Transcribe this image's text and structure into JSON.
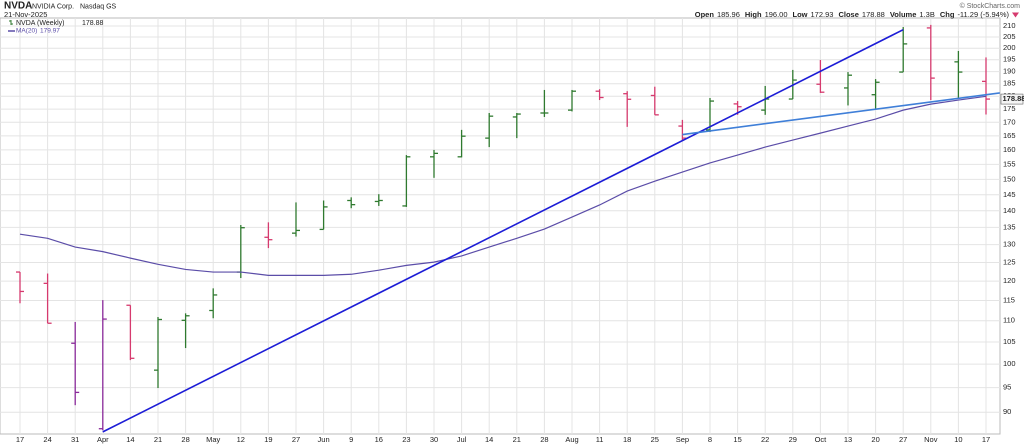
{
  "header": {
    "symbol": "NVDA",
    "name": "NVIDIA Corp.",
    "exchange": "Nasdaq GS",
    "date": "21-Nov-2025",
    "source": "© StockCharts.com",
    "quote": [
      {
        "label": "Open",
        "value": "185.96"
      },
      {
        "label": "High",
        "value": "196.00"
      },
      {
        "label": "Low",
        "value": "172.93"
      },
      {
        "label": "Close",
        "value": "178.88"
      },
      {
        "label": "Volume",
        "value": "1.3B"
      },
      {
        "label": "Chg",
        "value": "-11.29 (-5.94%)"
      }
    ]
  },
  "chart_data": {
    "type": "ohlc",
    "categories": [
      "17",
      "24",
      "31",
      "Apr",
      "14",
      "21",
      "28",
      "May",
      "12",
      "19",
      "27",
      "Jun",
      "9",
      "16",
      "23",
      "30",
      "Jul",
      "14",
      "21",
      "28",
      "Aug",
      "11",
      "18",
      "25",
      "Sep",
      "8",
      "15",
      "22",
      "29",
      "Oct",
      "13",
      "20",
      "27",
      "Nov",
      "10",
      "17"
    ],
    "series": [
      {
        "name": "NVDA (Weekly)",
        "open": [
          122.4,
          119.4,
          104.7,
          86.8,
          113.8,
          98.7,
          110.1,
          112.5,
          122.4,
          132.1,
          133.3,
          134.4,
          143.2,
          142.9,
          141.5,
          157.6,
          157.6,
          164.2,
          172.0,
          173.5,
          174.6,
          182.0,
          181.0,
          180.3,
          168.6,
          167.2,
          177.0,
          174.6,
          178.9,
          184.8,
          183.3,
          180.6,
          189.8,
          209.1,
          194.1,
          185.96
        ],
        "high": [
          122.4,
          122.0,
          109.7,
          115.1,
          113.8,
          110.9,
          111.8,
          118.1,
          135.7,
          136.5,
          142.6,
          143.2,
          144.2,
          145.2,
          158.2,
          160.0,
          167.2,
          173.5,
          173.5,
          182.5,
          182.5,
          182.8,
          182.0,
          183.8,
          170.9,
          179.3,
          178.1,
          184.1,
          190.7,
          194.9,
          189.8,
          186.9,
          209.5,
          210.5,
          198.8,
          196
        ],
        "low": [
          114.3,
          109.4,
          91.4,
          86.5,
          100.9,
          94.9,
          103.6,
          110.6,
          120.8,
          129.0,
          132.3,
          134.4,
          140.8,
          141.5,
          141.2,
          150.5,
          157.4,
          161.0,
          164.2,
          172.0,
          174.1,
          178.5,
          168.3,
          172.8,
          163.5,
          166.4,
          172.8,
          172.8,
          178.9,
          181.3,
          176.4,
          175.2,
          189.8,
          178.5,
          179.3,
          172.93
        ],
        "close": [
          117.3,
          109.4,
          94.0,
          110.4,
          101.3,
          110.3,
          111.2,
          116.4,
          134.9,
          131.4,
          134.1,
          141.2,
          141.9,
          143.2,
          157.6,
          158.8,
          164.9,
          172.3,
          173.1,
          173.5,
          182.0,
          179.5,
          178.8,
          172.8,
          164.2,
          178.1,
          175.9,
          178.9,
          186.5,
          181.6,
          188.5,
          185.6,
          201.9,
          187.3,
          189.8,
          178.88
        ],
        "colors": [
          "#d63a6e",
          "#d63a6e",
          "#8a2a9a",
          "#8a2a9a",
          "#d63a6e",
          "#2f7a2f",
          "#2f7a2f",
          "#2f7a2f",
          "#2f7a2f",
          "#d63a6e",
          "#2f7a2f",
          "#2f7a2f",
          "#2f7a2f",
          "#2f7a2f",
          "#2f7a2f",
          "#2f7a2f",
          "#2f7a2f",
          "#2f7a2f",
          "#2f7a2f",
          "#2f7a2f",
          "#2f7a2f",
          "#d63a6e",
          "#d63a6e",
          "#d63a6e",
          "#d63a6e",
          "#2f7a2f",
          "#d63a6e",
          "#2f7a2f",
          "#2f7a2f",
          "#d63a6e",
          "#2f7a2f",
          "#2f7a2f",
          "#2f7a2f",
          "#d63a6e",
          "#2f7a2f",
          "#d63a6e"
        ]
      },
      {
        "name": "MA(20)",
        "color": "#5b4da8",
        "values": [
          133.0,
          131.8,
          129.3,
          128.0,
          126.2,
          124.5,
          123.1,
          122.4,
          122.4,
          121.5,
          121.5,
          121.5,
          121.8,
          122.9,
          124.2,
          125.1,
          126.8,
          129.3,
          131.8,
          134.5,
          138.1,
          141.8,
          146.2,
          149.4,
          152.4,
          155.5,
          158.2,
          161.0,
          163.5,
          166.0,
          168.6,
          171.2,
          174.6,
          176.9,
          178.5,
          179.97
        ]
      }
    ],
    "trendlines": [
      {
        "color": "#1c1cd6",
        "x": [
          3,
          32
        ],
        "values": [
          86.2,
          208.3
        ]
      },
      {
        "color": "#3f7fd8",
        "x": [
          24,
          35.5
        ],
        "values": [
          165.5,
          181.3
        ]
      }
    ],
    "log_scale": true,
    "grid": true,
    "ylim": [
      85.8,
      213.7
    ],
    "yticks": [
      90,
      95,
      100,
      105,
      110,
      115,
      120,
      125,
      130,
      135,
      140,
      145,
      150,
      155,
      160,
      165,
      170,
      175,
      180,
      185,
      190,
      195,
      200,
      205,
      210
    ]
  }
}
